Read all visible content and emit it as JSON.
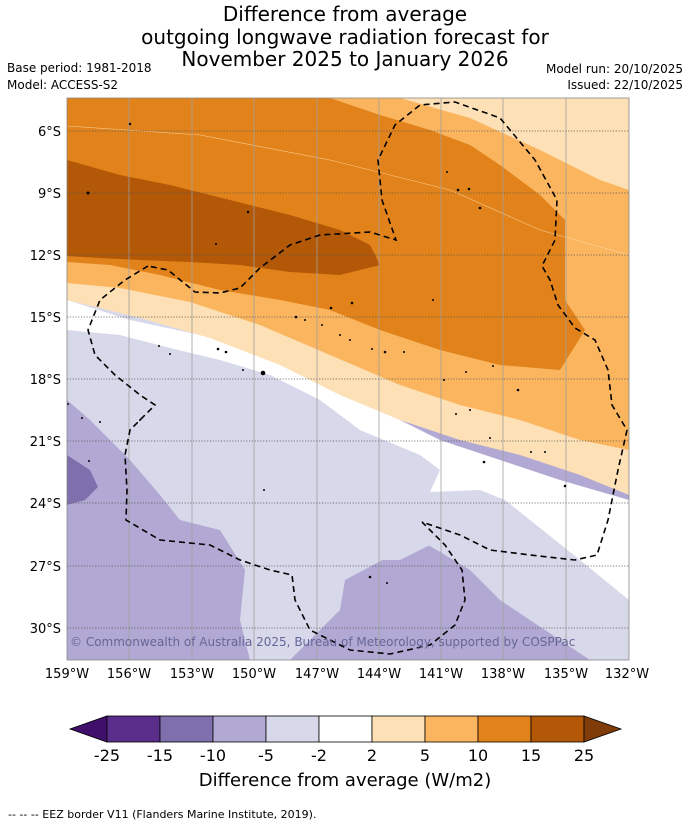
{
  "header": {
    "title_lines": [
      "Difference from average",
      "outgoing longwave radiation forecast for",
      "November 2025 to January 2026"
    ],
    "base_period": "Base period: 1981-2018",
    "model": "Model: ACCESS-S2",
    "model_run": "Model run: 20/10/2025",
    "issued": "Issued: 22/10/2025"
  },
  "map": {
    "x_ticks": [
      "159°W",
      "156°W",
      "153°W",
      "150°W",
      "147°W",
      "144°W",
      "141°W",
      "138°W",
      "135°W",
      "132°W"
    ],
    "y_ticks": [
      "6°S",
      "9°S",
      "12°S",
      "15°S",
      "18°S",
      "21°S",
      "24°S",
      "27°S",
      "30°S"
    ],
    "copyright": "© Commonwealth of Australia 2025, Bureau of Meteorology, supported by COSPPac"
  },
  "colorbar": {
    "levels": [
      "-25",
      "-15",
      "-10",
      "-5",
      "-2",
      "2",
      "5",
      "10",
      "15",
      "25"
    ],
    "colors": [
      "#3f0f6b",
      "#5a2d8a",
      "#7f6fac",
      "#b1a9d3",
      "#d8d8eb",
      "#ffffff",
      "#fde0b6",
      "#fbb55e",
      "#e1831a",
      "#b35806",
      "#7f3b08"
    ],
    "title": "Difference from average (W/m2)"
  },
  "legend": {
    "eez_label": "--  --  -- EEZ border V11 (Flanders Marine Institute, 2019)."
  }
}
